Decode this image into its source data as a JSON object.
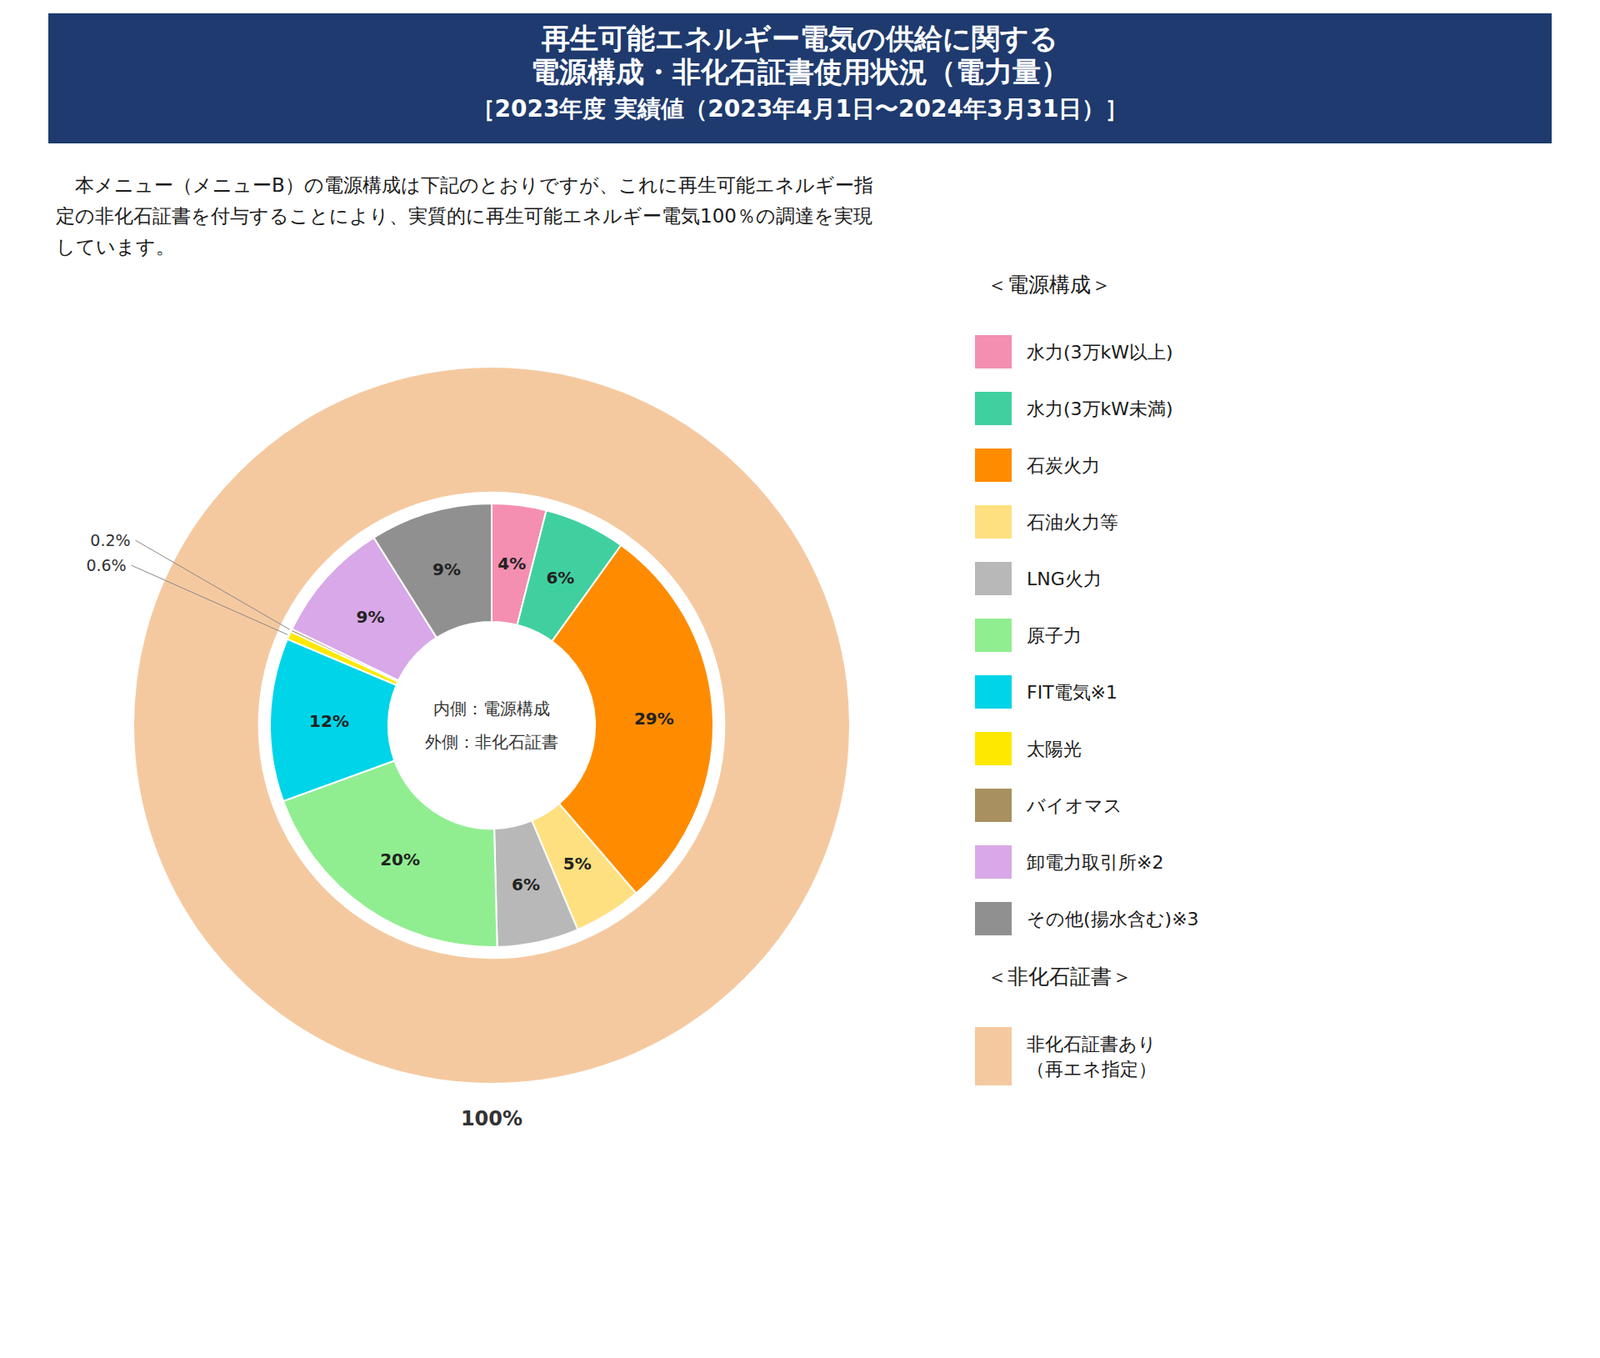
{
  "chart_data": {
    "type": "pie",
    "title": [
      "再生可能エネルギー電気の供給に関する",
      "電源構成・非化石証書使用状況（電力量）"
    ],
    "subtitle": "［2023年度 実績値（2023年4月1日〜2024年3月31日）］",
    "annotations": [
      "　本メニュー（メニューB）の電源構成は下記のとおりですが、これに再生可能エネルギー指",
      "定の非化石証書を付与することにより、実質的に再生可能エネルギー電気100％の調達を実現",
      "しています。"
    ],
    "data_labels": true,
    "series": [
      {
        "name": "内側：電源構成",
        "legend_title": "＜電源構成＞",
        "categories": [
          "水力(3万kW以上)",
          "水力(3万kW未満)",
          "石炭火力",
          "石油火力等",
          "LNG火力",
          "原子力",
          "FIT電気※1",
          "太陽光",
          "バイオマス",
          "卸電力取引所※2",
          "その他(揚水含む)※3"
        ],
        "values": [
          4,
          6,
          29,
          5,
          6,
          20,
          12,
          0.6,
          0.2,
          9,
          9
        ],
        "value_labels": [
          "4%",
          "6%",
          "29%",
          "5%",
          "6%",
          "20%",
          "12%",
          "0.6%",
          "0.2%",
          "9%",
          "9%"
        ],
        "colors": [
          "#F48FB1",
          "#40D0A0",
          "#FF8C00",
          "#FFE080",
          "#B8B8B8",
          "#90EE90",
          "#00D4E8",
          "#FFE800",
          "#A89060",
          "#D8A8E8",
          "#909090"
        ]
      },
      {
        "name": "外側：非化石証書",
        "legend_title": "＜非化石証書＞",
        "categories": [
          [
            "非化石証書あり",
            "（再エネ指定）"
          ]
        ],
        "values": [
          100
        ],
        "value_labels": [
          "100%"
        ],
        "colors": [
          "#F5C9A0"
        ]
      }
    ]
  }
}
